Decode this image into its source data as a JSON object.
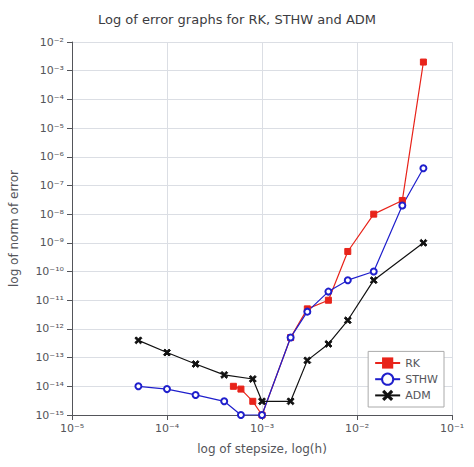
{
  "chart_data": {
    "type": "line",
    "title": "Log of error graphs for RK, STHW and ADM",
    "xlabel": "log of stepsize, log(h)",
    "ylabel": "log of norm of error",
    "log": true,
    "grid": true,
    "legend": "lower right",
    "xlim": [
      1e-05,
      0.1
    ],
    "ylim": [
      1e-15,
      0.01
    ],
    "xticks": [
      {
        "value": 1e-05,
        "label": "10⁻⁵"
      },
      {
        "value": 0.0001,
        "label": "10⁻⁴"
      },
      {
        "value": 0.001,
        "label": "10⁻³"
      },
      {
        "value": 0.01,
        "label": "10⁻²"
      },
      {
        "value": 0.1,
        "label": "10⁻¹"
      }
    ],
    "yticks": [
      {
        "value": 1e-15,
        "label": "10⁻¹⁵"
      },
      {
        "value": 1e-14,
        "label": "10⁻¹⁴"
      },
      {
        "value": 1e-13,
        "label": "10⁻¹³"
      },
      {
        "value": 1e-12,
        "label": "10⁻¹²"
      },
      {
        "value": 1e-11,
        "label": "10⁻¹¹"
      },
      {
        "value": 1e-10,
        "label": "10⁻¹⁰"
      },
      {
        "value": 1e-09,
        "label": "10⁻⁹"
      },
      {
        "value": 1e-08,
        "label": "10⁻⁸"
      },
      {
        "value": 1e-07,
        "label": "10⁻⁷"
      },
      {
        "value": 1e-06,
        "label": "10⁻⁶"
      },
      {
        "value": 1e-05,
        "label": "10⁻⁵"
      },
      {
        "value": 0.0001,
        "label": "10⁻⁴"
      },
      {
        "value": 0.001,
        "label": "10⁻³"
      },
      {
        "value": 0.01,
        "label": "10⁻²"
      }
    ],
    "series": [
      {
        "name": "RK",
        "color": "#e8231a",
        "marker": "square",
        "line_style": "solid",
        "x": [
          0.0005,
          0.0006,
          0.0008,
          0.001,
          0.002,
          0.003,
          0.005,
          0.008,
          0.015,
          0.03,
          0.05
        ],
        "values": [
          1e-14,
          8e-15,
          3e-15,
          1e-15,
          5e-13,
          5e-12,
          1e-11,
          5e-10,
          1e-08,
          3e-08,
          0.002
        ]
      },
      {
        "name": "STHW",
        "color": "#1f1fcc",
        "marker": "circle_open",
        "line_style": "solid",
        "x": [
          5e-05,
          0.0001,
          0.0002,
          0.0004,
          0.0006,
          0.001,
          0.002,
          0.003,
          0.005,
          0.008,
          0.015,
          0.03,
          0.05
        ],
        "values": [
          1e-14,
          8e-15,
          5e-15,
          3e-15,
          1e-15,
          1e-15,
          5e-13,
          4e-12,
          2e-11,
          5e-11,
          1e-10,
          2e-08,
          4e-07
        ]
      },
      {
        "name": "ADM",
        "color": "#111111",
        "marker": "x",
        "line_style": "solid",
        "x": [
          5e-05,
          0.0001,
          0.0002,
          0.0004,
          0.0008,
          0.001,
          0.002,
          0.003,
          0.005,
          0.008,
          0.015,
          0.05
        ],
        "values": [
          4e-13,
          1.5e-13,
          6e-14,
          2.5e-14,
          1.8e-14,
          3e-15,
          3e-15,
          8e-14,
          3e-13,
          2e-12,
          5e-11,
          1e-09
        ]
      }
    ]
  }
}
